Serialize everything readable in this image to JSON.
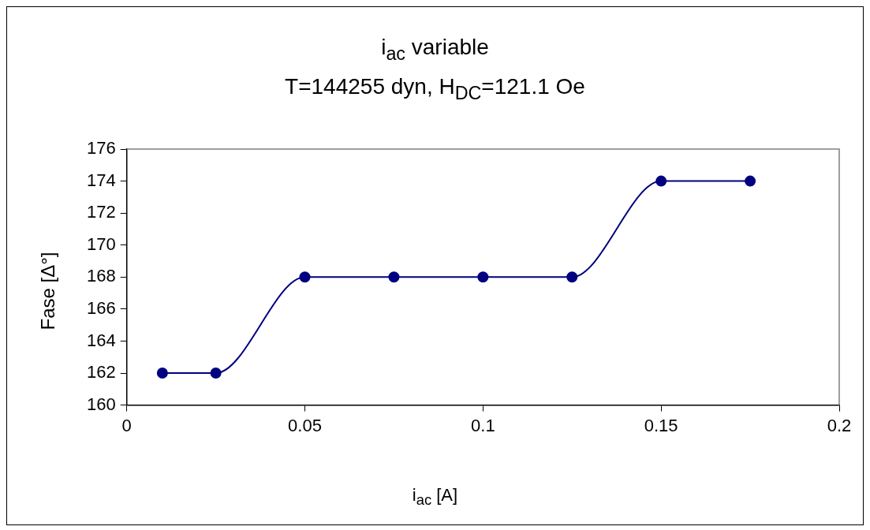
{
  "chart_data": {
    "type": "line",
    "title": "i$_{ac}$ variable",
    "subtitle": "T=144255 dyn, H$_{DC}$=121.1 Oe",
    "xlabel": "i$_{ac}$ [A]",
    "ylabel": "Fase [Δ°]",
    "x": [
      0.01,
      0.025,
      0.05,
      0.075,
      0.1,
      0.125,
      0.15,
      0.175
    ],
    "series": [
      {
        "color": "#000080",
        "values": [
          162,
          162,
          168,
          168,
          168,
          168,
          174,
          174
        ]
      }
    ],
    "xlim": [
      0,
      0.2
    ],
    "xticks": [
      0,
      0.05,
      0.1,
      0.15,
      0.2
    ],
    "ylim": [
      160,
      176
    ],
    "yticks": [
      160,
      162,
      164,
      166,
      168,
      170,
      172,
      174,
      176
    ],
    "grid": false,
    "legend": false,
    "marker": "circle",
    "line_style": "solid"
  }
}
